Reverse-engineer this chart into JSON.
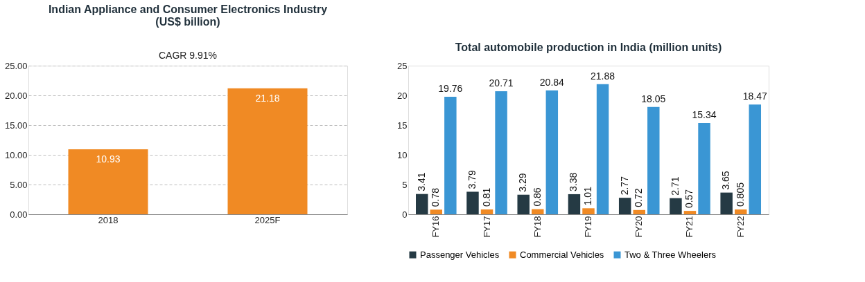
{
  "chart_data": [
    {
      "type": "bar",
      "title": "Indian Appliance and Consumer Electronics Industry\n(US$ billion)",
      "categories": [
        "2018",
        "2025F"
      ],
      "series": [
        {
          "color": "#f08a24",
          "values": [
            10.93,
            21.18
          ]
        }
      ],
      "ylim": [
        0,
        25
      ],
      "yticks": [
        {
          "value": 0,
          "label": "0.00"
        },
        {
          "value": 5,
          "label": "5.00"
        },
        {
          "value": 10,
          "label": "10.00"
        },
        {
          "value": 15,
          "label": "15.00"
        },
        {
          "value": 20,
          "label": "20.00"
        },
        {
          "value": 25,
          "label": "25.00"
        }
      ],
      "grid": "y",
      "data_labels": true,
      "annotations": [
        "CAGR 9.91%"
      ]
    },
    {
      "type": "bar",
      "title": "Total automobile production in India (million units)",
      "categories": [
        "FY16",
        "FY17",
        "FY18",
        "FY19",
        "FY20",
        "FY21",
        "FY22"
      ],
      "series": [
        {
          "name": "Passenger Vehicles",
          "color": "#253a44",
          "values": [
            3.41,
            3.79,
            3.29,
            3.38,
            2.77,
            2.71,
            3.65
          ]
        },
        {
          "name": "Commercial Vehicles",
          "color": "#f08a24",
          "values": [
            0.78,
            0.81,
            0.86,
            1.01,
            0.72,
            0.57,
            0.805
          ]
        },
        {
          "name": "Two & Three Wheelers",
          "color": "#3a96d4",
          "values": [
            19.76,
            20.71,
            20.84,
            21.88,
            18.05,
            15.34,
            18.47
          ]
        }
      ],
      "ylim": [
        0,
        25
      ],
      "yticks": [
        0,
        5,
        10,
        15,
        20,
        25
      ],
      "data_labels": true,
      "legend": "bottom"
    }
  ]
}
